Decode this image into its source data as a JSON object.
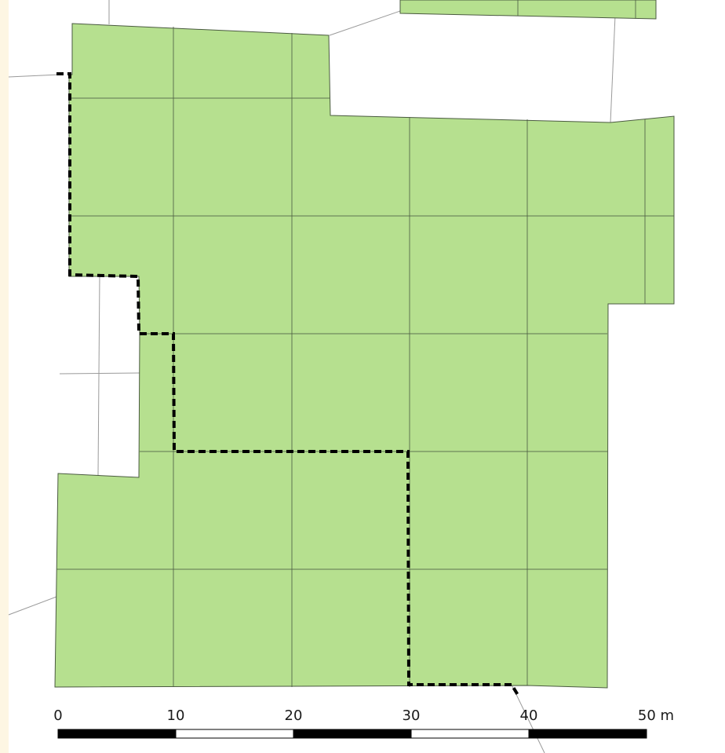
{
  "colors": {
    "page_edge": "#fdf6e3",
    "background": "#ffffff",
    "parcel_fill": "#b6e08f",
    "parcel_stroke": "#4a5a40",
    "road_line": "#9a9a9a",
    "boundary": "#000000",
    "scale_black": "#000000",
    "scale_white": "#ffffff"
  },
  "scale_bar": {
    "labels": [
      "0",
      "10",
      "20",
      "30",
      "40",
      "50 m"
    ]
  }
}
